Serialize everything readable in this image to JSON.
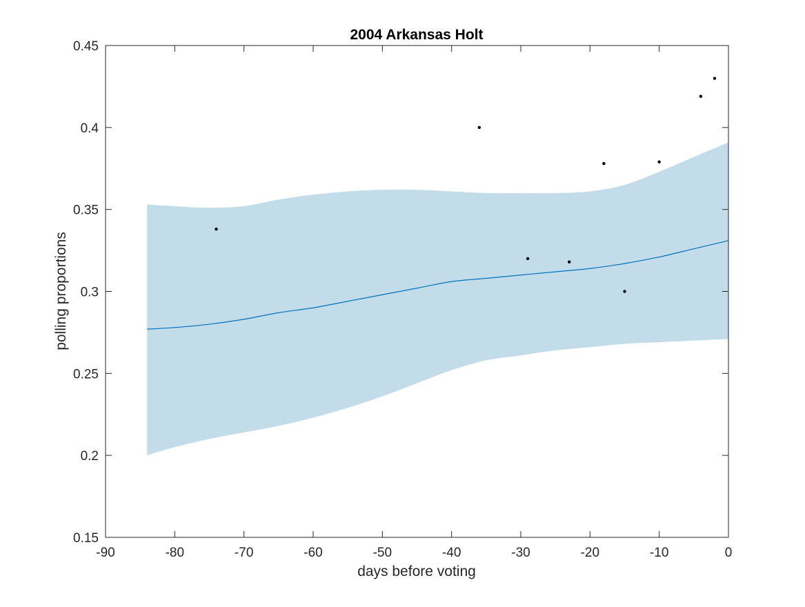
{
  "chart_data": {
    "type": "line",
    "title": "2004 Arkansas Holt",
    "xlabel": "days before voting",
    "ylabel": "polling proportions",
    "xlim": [
      -90,
      0
    ],
    "ylim": [
      0.15,
      0.45
    ],
    "x_ticks": [
      -90,
      -80,
      -70,
      -60,
      -50,
      -40,
      -30,
      -20,
      -10,
      0
    ],
    "x_tick_labels": [
      "-90",
      "-80",
      "-70",
      "-60",
      "-50",
      "-40",
      "-30",
      "-20",
      "-10",
      "0"
    ],
    "y_ticks": [
      0.15,
      0.2,
      0.25,
      0.3,
      0.35,
      0.4,
      0.45
    ],
    "y_tick_labels": [
      "0.15",
      "0.2",
      "0.25",
      "0.3",
      "0.35",
      "0.4",
      "0.45"
    ],
    "grid": false,
    "colors": {
      "band": "#c2dcea",
      "line": "#0072bd",
      "points": "#000000",
      "axes": "#262626"
    },
    "series": [
      {
        "type": "scatter",
        "x": [
          -74,
          -36,
          -29,
          -23,
          -18,
          -15,
          -10,
          -4,
          -2
        ],
        "y": [
          0.338,
          0.4,
          0.32,
          0.318,
          0.378,
          0.3,
          0.379,
          0.419,
          0.43
        ]
      },
      {
        "type": "line",
        "x": [
          -84,
          -80,
          -75,
          -70,
          -65,
          -60,
          -55,
          -50,
          -45,
          -40,
          -35,
          -30,
          -25,
          -20,
          -15,
          -10,
          -5,
          0
        ],
        "y": [
          0.277,
          0.278,
          0.28,
          0.283,
          0.287,
          0.29,
          0.294,
          0.298,
          0.302,
          0.306,
          0.308,
          0.31,
          0.312,
          0.314,
          0.317,
          0.321,
          0.326,
          0.331
        ]
      },
      {
        "type": "band",
        "x": [
          -84,
          -80,
          -75,
          -70,
          -65,
          -60,
          -55,
          -50,
          -45,
          -40,
          -35,
          -30,
          -25,
          -20,
          -15,
          -10,
          -5,
          0
        ],
        "upper": [
          0.353,
          0.352,
          0.351,
          0.352,
          0.356,
          0.359,
          0.361,
          0.362,
          0.362,
          0.361,
          0.36,
          0.36,
          0.36,
          0.361,
          0.365,
          0.373,
          0.382,
          0.391
        ],
        "lower": [
          0.2,
          0.205,
          0.21,
          0.214,
          0.218,
          0.223,
          0.229,
          0.236,
          0.244,
          0.252,
          0.258,
          0.261,
          0.264,
          0.266,
          0.268,
          0.269,
          0.27,
          0.271
        ]
      }
    ]
  }
}
